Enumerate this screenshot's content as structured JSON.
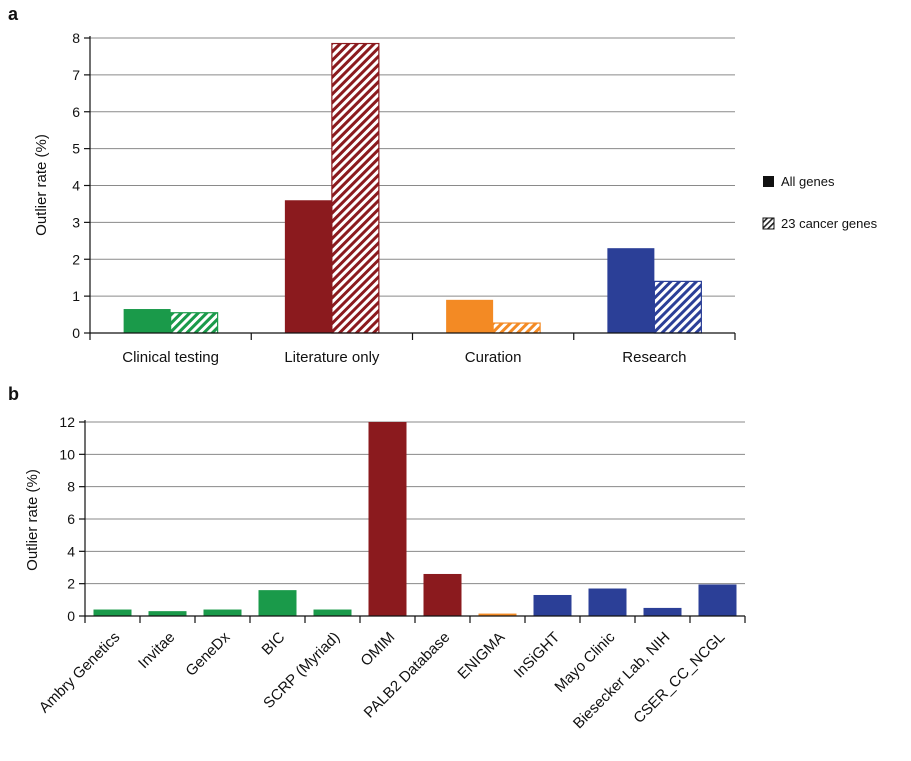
{
  "chart_data": [
    {
      "panel": "a",
      "type": "bar",
      "categories": [
        "Clinical testing",
        "Literature only",
        "Curation",
        "Research"
      ],
      "series": [
        {
          "name": "All genes",
          "values": [
            0.65,
            3.6,
            0.9,
            2.3
          ]
        },
        {
          "name": "23 cancer genes",
          "values": [
            0.55,
            7.85,
            0.27,
            1.4
          ]
        }
      ],
      "colors": [
        "#1a9a4a",
        "#8b1a1e",
        "#f38a24",
        "#2b3f97"
      ],
      "ylabel": "Outlier rate (%)",
      "ylim": [
        0,
        8
      ],
      "yticks": [
        "0",
        "1",
        "2",
        "3",
        "4",
        "5",
        "6",
        "7",
        "8"
      ],
      "grid": true,
      "legend": "right"
    },
    {
      "panel": "b",
      "type": "bar",
      "categories": [
        "Ambry Genetics",
        "Invitae",
        "GeneDx",
        "BIC",
        "SCRP (Myriad)",
        "OMIM",
        "PALB2 Database",
        "ENIGMA",
        "InSiGHT",
        "Mayo Clinic",
        "Biesecker Lab, NIH",
        "CSER_CC_NCGL"
      ],
      "values": [
        0.4,
        0.3,
        0.4,
        1.6,
        0.4,
        12.0,
        2.6,
        0.15,
        1.3,
        1.7,
        0.5,
        1.95
      ],
      "colors": [
        "#1a9a4a",
        "#1a9a4a",
        "#1a9a4a",
        "#1a9a4a",
        "#1a9a4a",
        "#8b1a1e",
        "#8b1a1e",
        "#f38a24",
        "#2b3f97",
        "#2b3f97",
        "#2b3f97",
        "#2b3f97"
      ],
      "ylabel": "Outlier rate (%)",
      "ylim": [
        0,
        12
      ],
      "yticks": [
        "0",
        "2",
        "4",
        "6",
        "8",
        "10",
        "12"
      ],
      "grid": true
    }
  ]
}
